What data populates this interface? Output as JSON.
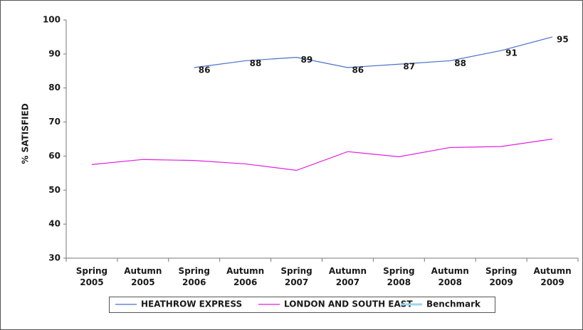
{
  "chart_data": {
    "type": "line",
    "y_label": "% SATISFIED",
    "categories": [
      "Spring 2005",
      "Autumn 2005",
      "Spring 2006",
      "Autumn 2006",
      "Spring 2007",
      "Autumn 2007",
      "Spring 2008",
      "Autumn 2008",
      "Spring 2009",
      "Autumn 2009"
    ],
    "series": [
      {
        "name": "HEATHROW EXPRESS",
        "color": "#4a6fc9",
        "values": [
          null,
          null,
          86,
          88,
          89,
          86,
          87,
          88,
          91,
          95
        ],
        "data_labels": true
      },
      {
        "name": "LONDON AND SOUTH EAST",
        "color": "#e020e0",
        "values": [
          57.5,
          59,
          58.7,
          57.7,
          55.8,
          61.3,
          59.8,
          62.5,
          62.8,
          65
        ],
        "data_labels": false
      },
      {
        "name": "Benchmark",
        "color": "#9fd3f0",
        "values": [
          null,
          null,
          null,
          null,
          null,
          null,
          null,
          null,
          null,
          null
        ],
        "data_labels": false
      }
    ],
    "ylim": [
      30,
      100
    ],
    "yticks": [
      30,
      40,
      50,
      60,
      70,
      80,
      90,
      100
    ],
    "grid": false,
    "legend": "bottom"
  }
}
